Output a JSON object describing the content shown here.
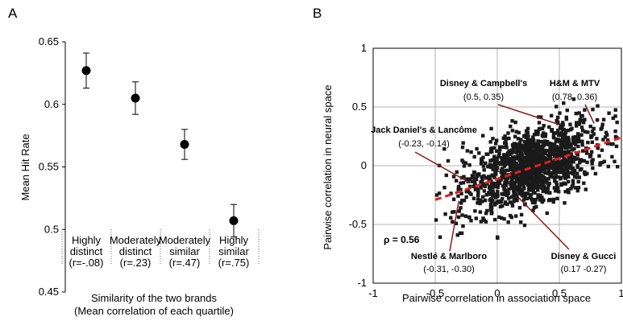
{
  "chart_data": [
    {
      "panel_label": "A",
      "type": "scatter",
      "ylabel": "Mean Hit Rate",
      "xlabel_lines": [
        "Similarity of the two brands",
        "(Mean correlation of each quartile)"
      ],
      "ylim": [
        0.45,
        0.65
      ],
      "yticks": [
        "0.45",
        "0.5",
        "0.55",
        "0.6",
        "0.65"
      ],
      "categories": [
        {
          "lines": [
            "Highly",
            "distinct",
            "(r=-.08)"
          ]
        },
        {
          "lines": [
            "Moderately",
            "distinct",
            "(r=.23)"
          ]
        },
        {
          "lines": [
            "Moderately",
            "similar",
            "(r=.47)"
          ]
        },
        {
          "lines": [
            "Highly",
            "similar",
            "(r=.75)"
          ]
        }
      ],
      "values": [
        0.627,
        0.605,
        0.568,
        0.507
      ],
      "error": [
        0.014,
        0.013,
        0.012,
        0.013
      ]
    },
    {
      "panel_label": "B",
      "type": "scatter",
      "xlabel": "Pairwise correlation in association space",
      "ylabel": "Pairwise correlation in neural space",
      "xlim": [
        -1,
        1
      ],
      "ylim": [
        -1,
        1
      ],
      "xticks": [
        "-1",
        "-0.5",
        "0",
        "0.5",
        "1"
      ],
      "yticks": [
        "1",
        "0.5",
        "0",
        "-0.5",
        "-1"
      ],
      "grid": true,
      "n_points": 1400,
      "trend_line": {
        "style": "dashed",
        "color": "#e02020",
        "x": [
          -0.5,
          1.0
        ],
        "y": [
          -0.29,
          0.24
        ]
      },
      "rho_text": "ρ = 0.56",
      "annotations": [
        {
          "title": "Disney & Campbell's",
          "coords": "(0.5, 0.35)",
          "x": 0.5,
          "y": 0.35
        },
        {
          "title": "H&M & MTV",
          "coords": "(0.78, 0.36)",
          "x": 0.78,
          "y": 0.36
        },
        {
          "title": "Jack Daniel's & Lancôme",
          "coords": "(-0.23, -0.14)",
          "x": -0.23,
          "y": -0.14
        },
        {
          "title": "Nestlé & Marlboro",
          "coords": "(-0.31, -0.30)",
          "x": -0.31,
          "y": -0.3
        },
        {
          "title": "Disney & Gucci",
          "coords": "(0.17 -0.27)",
          "x": 0.17,
          "y": -0.27
        }
      ]
    }
  ]
}
